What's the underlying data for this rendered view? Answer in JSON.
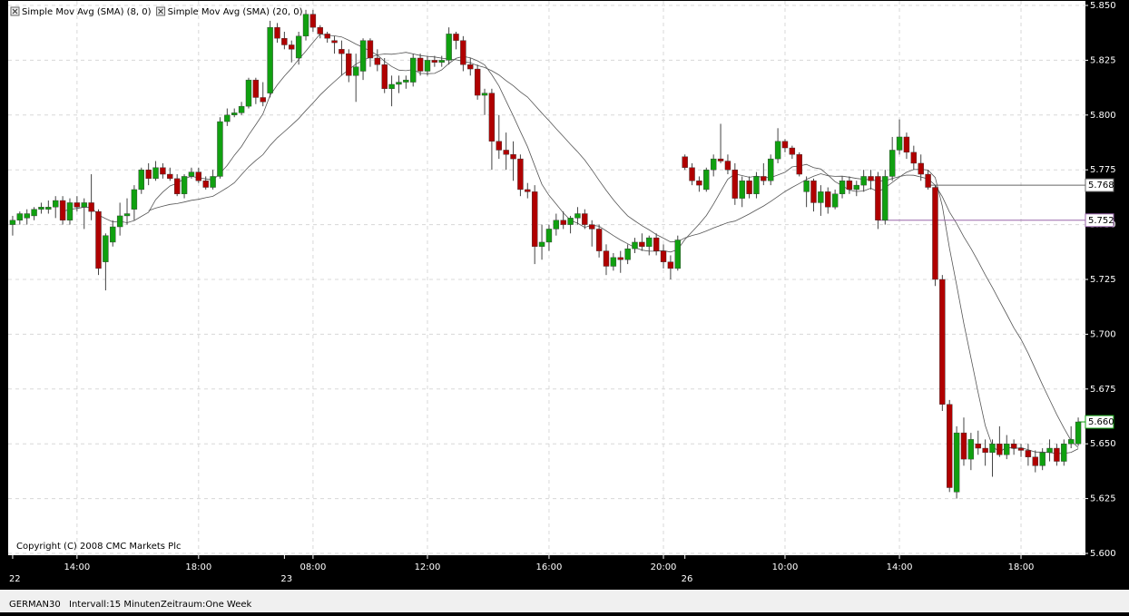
{
  "chart_data": {
    "type": "candlestick",
    "legend": [
      {
        "name": "Simple Mov Avg (SMA) (8, 0)",
        "period": 8,
        "color": "#555555"
      },
      {
        "name": "Simple Mov Avg (SMA) (20, 0)",
        "period": 20,
        "color": "#555555"
      }
    ],
    "copyright": "Copyright (C) 2008 CMC Markets Plc",
    "symbol": "GERMAN30",
    "interval": "Intervall:15 Minuten",
    "period": "Zeitraum:One Week",
    "up_color": "#10a010",
    "down_color": "#b00000",
    "grid": true,
    "ylim": [
      5.6,
      5.85
    ],
    "yticks": [
      {
        "value": 5.6,
        "label": "5.600"
      },
      5.625,
      {
        "value": 5.65,
        "label": "5.650"
      },
      5.675,
      {
        "value": 5.7,
        "label": "5.700"
      },
      5.725,
      {
        "value": 5.75,
        "label": "5.750"
      },
      5.775,
      {
        "value": 5.8,
        "label": "5.800"
      },
      5.825,
      {
        "value": 5.85,
        "label": "5.850"
      }
    ],
    "price_lines": [
      {
        "value": 5.768,
        "color": "#666666"
      },
      {
        "value": 5.752,
        "color": "#9966aa"
      },
      {
        "value": 5.66,
        "label": "5.660",
        "color": "#10a010"
      }
    ],
    "categories": [
      "22",
      null,
      null,
      null,
      null,
      null,
      null,
      null,
      null,
      "14:00",
      null,
      null,
      null,
      null,
      null,
      null,
      null,
      null,
      null,
      null,
      null,
      null,
      null,
      null,
      null,
      null,
      "18:00",
      null,
      null,
      null,
      null,
      null,
      null,
      null,
      null,
      null,
      null,
      null,
      "23",
      null,
      null,
      null,
      "08:00",
      null,
      null,
      null,
      null,
      null,
      null,
      null,
      null,
      null,
      null,
      null,
      null,
      null,
      null,
      null,
      "12:00",
      null,
      null,
      null,
      null,
      null,
      null,
      null,
      null,
      null,
      null,
      null,
      null,
      null,
      null,
      null,
      null,
      "16:00",
      null,
      null,
      null,
      null,
      null,
      null,
      null,
      null,
      null,
      null,
      null,
      null,
      null,
      null,
      null,
      "20:00",
      null,
      null,
      "26",
      null,
      null,
      null,
      null,
      null,
      null,
      null,
      null,
      null,
      null,
      null,
      null,
      null,
      "10:00",
      null,
      null,
      null,
      null,
      null,
      null,
      null,
      null,
      null,
      null,
      null,
      null,
      null,
      null,
      null,
      "14:00",
      null,
      null,
      null,
      null,
      null,
      null,
      null,
      null,
      null,
      null,
      null,
      null,
      null,
      null,
      null,
      null,
      "18:00",
      null,
      null,
      null,
      null,
      null,
      null,
      null,
      null
    ],
    "ohlc": [
      [
        5.75,
        5.754,
        5.745,
        5.752
      ],
      [
        5.752,
        5.756,
        5.75,
        5.755
      ],
      [
        5.753,
        5.757,
        5.75,
        5.755
      ],
      [
        5.754,
        5.758,
        5.752,
        5.757
      ],
      [
        5.757,
        5.76,
        5.755,
        5.758
      ],
      [
        5.757,
        5.761,
        5.755,
        5.758
      ],
      [
        5.758,
        5.763,
        5.753,
        5.761
      ],
      [
        5.761,
        5.763,
        5.75,
        5.752
      ],
      [
        5.752,
        5.762,
        5.75,
        5.76
      ],
      [
        5.76,
        5.763,
        5.756,
        5.758
      ],
      [
        5.758,
        5.762,
        5.748,
        5.76
      ],
      [
        5.76,
        5.773,
        5.752,
        5.756
      ],
      [
        5.756,
        5.757,
        5.727,
        5.73
      ],
      [
        5.733,
        5.746,
        5.72,
        5.745
      ],
      [
        5.742,
        5.752,
        5.74,
        5.749
      ],
      [
        5.749,
        5.76,
        5.745,
        5.754
      ],
      [
        5.754,
        5.762,
        5.75,
        5.755
      ],
      [
        5.757,
        5.768,
        5.752,
        5.766
      ],
      [
        5.766,
        5.776,
        5.764,
        5.775
      ],
      [
        5.775,
        5.778,
        5.768,
        5.771
      ],
      [
        5.771,
        5.779,
        5.77,
        5.776
      ],
      [
        5.776,
        5.778,
        5.771,
        5.773
      ],
      [
        5.773,
        5.776,
        5.77,
        5.771
      ],
      [
        5.771,
        5.773,
        5.763,
        5.764
      ],
      [
        5.764,
        5.773,
        5.762,
        5.772
      ],
      [
        5.772,
        5.776,
        5.771,
        5.774
      ],
      [
        5.774,
        5.776,
        5.769,
        5.77
      ],
      [
        5.77,
        5.772,
        5.766,
        5.767
      ],
      [
        5.767,
        5.775,
        5.766,
        5.772
      ],
      [
        5.772,
        5.799,
        5.771,
        5.797
      ],
      [
        5.797,
        5.803,
        5.795,
        5.8
      ],
      [
        5.8,
        5.803,
        5.799,
        5.801
      ],
      [
        5.801,
        5.806,
        5.8,
        5.804
      ],
      [
        5.804,
        5.817,
        5.803,
        5.816
      ],
      [
        5.816,
        5.817,
        5.805,
        5.808
      ],
      [
        5.808,
        5.815,
        5.804,
        5.806
      ],
      [
        5.81,
        5.843,
        5.808,
        5.84
      ],
      [
        5.84,
        5.842,
        5.833,
        5.835
      ],
      [
        5.835,
        5.838,
        5.83,
        5.832
      ],
      [
        5.832,
        5.834,
        5.824,
        5.83
      ],
      [
        5.826,
        5.838,
        5.823,
        5.836
      ],
      [
        5.836,
        5.848,
        5.834,
        5.846
      ],
      [
        5.846,
        5.848,
        5.838,
        5.84
      ],
      [
        5.84,
        5.841,
        5.835,
        5.837
      ],
      [
        5.837,
        5.838,
        5.833,
        5.835
      ],
      [
        5.834,
        5.836,
        5.828,
        5.833
      ],
      [
        5.83,
        5.834,
        5.818,
        5.828
      ],
      [
        5.828,
        5.83,
        5.815,
        5.818
      ],
      [
        5.818,
        5.828,
        5.806,
        5.822
      ],
      [
        5.82,
        5.835,
        5.816,
        5.834
      ],
      [
        5.834,
        5.835,
        5.822,
        5.826
      ],
      [
        5.826,
        5.83,
        5.82,
        5.823
      ],
      [
        5.823,
        5.826,
        5.81,
        5.812
      ],
      [
        5.812,
        5.818,
        5.804,
        5.814
      ],
      [
        5.814,
        5.818,
        5.81,
        5.815
      ],
      [
        5.815,
        5.818,
        5.812,
        5.816
      ],
      [
        5.815,
        5.828,
        5.813,
        5.826
      ],
      [
        5.826,
        5.828,
        5.818,
        5.82
      ],
      [
        5.82,
        5.827,
        5.818,
        5.825
      ],
      [
        5.825,
        5.827,
        5.822,
        5.824
      ],
      [
        5.824,
        5.827,
        5.822,
        5.825
      ],
      [
        5.825,
        5.84,
        5.823,
        5.837
      ],
      [
        5.837,
        5.838,
        5.83,
        5.834
      ],
      [
        5.834,
        5.836,
        5.82,
        5.823
      ],
      [
        5.823,
        5.826,
        5.818,
        5.821
      ],
      [
        5.821,
        5.823,
        5.807,
        5.809
      ],
      [
        5.809,
        5.812,
        5.8,
        5.81
      ],
      [
        5.81,
        5.812,
        5.775,
        5.788
      ],
      [
        5.788,
        5.8,
        5.78,
        5.784
      ],
      [
        5.784,
        5.792,
        5.775,
        5.782
      ],
      [
        5.782,
        5.788,
        5.77,
        5.78
      ],
      [
        5.78,
        5.782,
        5.763,
        5.766
      ],
      [
        5.766,
        5.769,
        5.762,
        5.765
      ],
      [
        5.765,
        5.768,
        5.732,
        5.74
      ],
      [
        5.74,
        5.75,
        5.734,
        5.742
      ],
      [
        5.742,
        5.75,
        5.738,
        5.748
      ],
      [
        5.748,
        5.755,
        5.745,
        5.752
      ],
      [
        5.752,
        5.756,
        5.748,
        5.75
      ],
      [
        5.75,
        5.754,
        5.746,
        5.753
      ],
      [
        5.753,
        5.758,
        5.75,
        5.755
      ],
      [
        5.755,
        5.757,
        5.748,
        5.75
      ],
      [
        5.75,
        5.752,
        5.74,
        5.748
      ],
      [
        5.748,
        5.75,
        5.735,
        5.738
      ],
      [
        5.738,
        5.741,
        5.727,
        5.731
      ],
      [
        5.731,
        5.737,
        5.729,
        5.735
      ],
      [
        5.735,
        5.738,
        5.728,
        5.734
      ],
      [
        5.734,
        5.741,
        5.732,
        5.739
      ],
      [
        5.739,
        5.744,
        5.737,
        5.742
      ],
      [
        5.742,
        5.746,
        5.738,
        5.74
      ],
      [
        5.74,
        5.745,
        5.736,
        5.744
      ],
      [
        5.744,
        5.746,
        5.736,
        5.738
      ],
      [
        5.738,
        5.741,
        5.73,
        5.733
      ],
      [
        5.733,
        5.736,
        5.725,
        5.73
      ],
      [
        5.73,
        5.745,
        5.729,
        5.743
      ],
      [
        5.781,
        5.782,
        5.775,
        5.776
      ],
      [
        5.776,
        5.778,
        5.768,
        5.77
      ],
      [
        5.77,
        5.772,
        5.765,
        5.768
      ],
      [
        5.766,
        5.776,
        5.765,
        5.775
      ],
      [
        5.775,
        5.782,
        5.772,
        5.78
      ],
      [
        5.78,
        5.796,
        5.778,
        5.779
      ],
      [
        5.779,
        5.782,
        5.773,
        5.775
      ],
      [
        5.775,
        5.778,
        5.759,
        5.762
      ],
      [
        5.762,
        5.772,
        5.758,
        5.77
      ],
      [
        5.77,
        5.772,
        5.762,
        5.764
      ],
      [
        5.764,
        5.774,
        5.762,
        5.772
      ],
      [
        5.772,
        5.778,
        5.768,
        5.77
      ],
      [
        5.77,
        5.782,
        5.768,
        5.78
      ],
      [
        5.78,
        5.794,
        5.778,
        5.788
      ],
      [
        5.788,
        5.789,
        5.783,
        5.785
      ],
      [
        5.785,
        5.786,
        5.78,
        5.782
      ],
      [
        5.782,
        5.783,
        5.772,
        5.773
      ],
      [
        5.765,
        5.772,
        5.758,
        5.77
      ],
      [
        5.77,
        5.771,
        5.756,
        5.76
      ],
      [
        5.76,
        5.768,
        5.754,
        5.765
      ],
      [
        5.765,
        5.767,
        5.755,
        5.758
      ],
      [
        5.758,
        5.766,
        5.757,
        5.764
      ],
      [
        5.764,
        5.772,
        5.762,
        5.77
      ],
      [
        5.77,
        5.772,
        5.764,
        5.766
      ],
      [
        5.766,
        5.77,
        5.763,
        5.768
      ],
      [
        5.768,
        5.775,
        5.765,
        5.772
      ],
      [
        5.772,
        5.775,
        5.766,
        5.77
      ],
      [
        5.772,
        5.774,
        5.748,
        5.752
      ],
      [
        5.752,
        5.775,
        5.75,
        5.772
      ],
      [
        5.772,
        5.79,
        5.77,
        5.784
      ],
      [
        5.784,
        5.798,
        5.782,
        5.79
      ],
      [
        5.79,
        5.792,
        5.78,
        5.783
      ],
      [
        5.783,
        5.786,
        5.775,
        5.778
      ],
      [
        5.778,
        5.782,
        5.77,
        5.773
      ],
      [
        5.773,
        5.775,
        5.766,
        5.767
      ],
      [
        5.767,
        5.768,
        5.722,
        5.725
      ],
      [
        5.725,
        5.727,
        5.665,
        5.668
      ],
      [
        5.668,
        5.67,
        5.628,
        5.63
      ],
      [
        5.628,
        5.658,
        5.625,
        5.655
      ],
      [
        5.655,
        5.662,
        5.64,
        5.643
      ],
      [
        5.643,
        5.655,
        5.638,
        5.652
      ],
      [
        5.65,
        5.656,
        5.645,
        5.648
      ],
      [
        5.648,
        5.652,
        5.64,
        5.646
      ],
      [
        5.646,
        5.652,
        5.635,
        5.65
      ],
      [
        5.65,
        5.658,
        5.644,
        5.645
      ],
      [
        5.645,
        5.654,
        5.643,
        5.65
      ],
      [
        5.65,
        5.652,
        5.645,
        5.648
      ],
      [
        5.648,
        5.65,
        5.644,
        5.647
      ],
      [
        5.647,
        5.65,
        5.64,
        5.644
      ],
      [
        5.644,
        5.647,
        5.637,
        5.64
      ],
      [
        5.64,
        5.648,
        5.638,
        5.646
      ],
      [
        5.646,
        5.652,
        5.642,
        5.648
      ],
      [
        5.648,
        5.65,
        5.64,
        5.642
      ],
      [
        5.642,
        5.652,
        5.64,
        5.65
      ],
      [
        5.65,
        5.658,
        5.648,
        5.652
      ],
      [
        5.65,
        5.662,
        5.649,
        5.66
      ]
    ]
  }
}
